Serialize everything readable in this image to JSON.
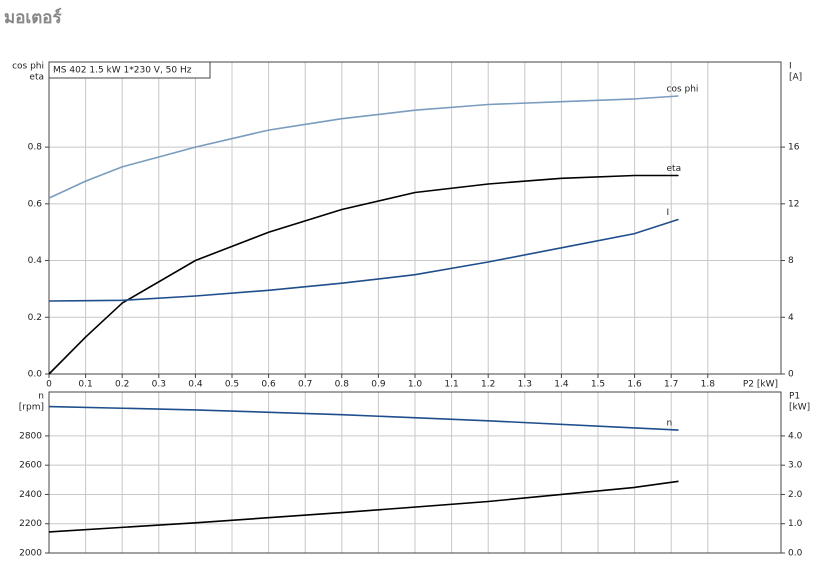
{
  "heading": "มอเตอร์",
  "chart_data": [
    {
      "type": "line",
      "annotation": "MS 402   1.5 kW   1*230 V, 50 Hz",
      "ylabel": [
        "cos phi",
        "eta"
      ],
      "y2label": [
        "I",
        "[A]"
      ],
      "xlabel": "P2 [kW]",
      "x": [
        0,
        0.1,
        0.2,
        0.4,
        0.6,
        0.8,
        1.0,
        1.2,
        1.4,
        1.6,
        1.72
      ],
      "xlim": [
        0,
        2.0
      ],
      "xticks": [
        {
          "value": 0,
          "label": "0"
        },
        0.1,
        0.2,
        0.3,
        0.4,
        0.5,
        0.6,
        0.7,
        0.8,
        0.9,
        {
          "value": 1,
          "label": "1.0"
        },
        1.1,
        1.2,
        1.3,
        1.4,
        1.5,
        1.6,
        1.7,
        1.8
      ],
      "ylim": [
        0,
        1.1
      ],
      "yticks": [
        {
          "value": 0,
          "label": "0.0"
        },
        0.2,
        0.4,
        0.6,
        0.8
      ],
      "y2lim": [
        0,
        22
      ],
      "y2ticks": [
        0,
        4,
        8,
        12,
        16
      ],
      "grid": true,
      "series": [
        {
          "name": "cos phi",
          "color": "#7a9cbf",
          "values": [
            0.62,
            0.68,
            0.73,
            0.8,
            0.86,
            0.9,
            0.93,
            0.95,
            0.96,
            0.97,
            0.98
          ]
        },
        {
          "name": "eta",
          "color": "#000000",
          "values": [
            0,
            0.13,
            0.25,
            0.4,
            0.5,
            0.58,
            0.64,
            0.67,
            0.69,
            0.7,
            0.7
          ]
        },
        {
          "name": "I",
          "color": "#1f4e8c",
          "axis": "y2",
          "values": [
            5.15,
            5.17,
            5.2,
            5.5,
            5.9,
            6.4,
            7.0,
            7.9,
            8.9,
            9.9,
            10.9
          ]
        }
      ]
    },
    {
      "type": "line",
      "ylabel": [
        "n",
        "[rpm]"
      ],
      "y2label": [
        "P1",
        "[kW]"
      ],
      "x": [
        0,
        0.4,
        0.8,
        1.2,
        1.6,
        1.72
      ],
      "xlim": [
        0,
        2.0
      ],
      "xticks": [
        0,
        0.1,
        0.2,
        0.3,
        0.4,
        0.5,
        0.6,
        0.7,
        0.8,
        0.9,
        1,
        1.1,
        1.2,
        1.3,
        1.4,
        1.5,
        1.6,
        1.7,
        1.8
      ],
      "ylim": [
        2000,
        3100
      ],
      "yticks": [
        2000,
        2200,
        2400,
        2600,
        2800
      ],
      "y2lim": [
        0,
        5.5
      ],
      "y2ticks": [
        {
          "value": 0,
          "label": "0.0"
        },
        {
          "value": 1,
          "label": "1.0"
        },
        {
          "value": 2,
          "label": "2.0"
        },
        {
          "value": 3,
          "label": "3.0"
        },
        {
          "value": 4,
          "label": "4.0"
        }
      ],
      "grid": true,
      "series": [
        {
          "name": "n",
          "color": "#1f4e8c",
          "values": [
            3000,
            2978,
            2945,
            2903,
            2855,
            2840
          ]
        },
        {
          "color": "#000000",
          "axis": "y2",
          "values": [
            0.72,
            1.03,
            1.38,
            1.76,
            2.24,
            2.45
          ]
        }
      ]
    }
  ]
}
